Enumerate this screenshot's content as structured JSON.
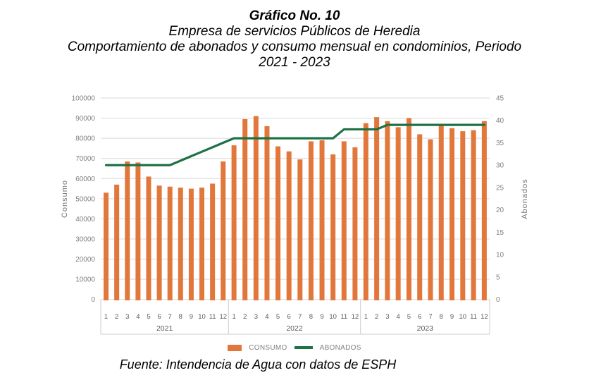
{
  "title": {
    "line1": "Gráfico No. 10",
    "line2": "Empresa de servicios Públicos de Heredia",
    "line3": "Comportamiento de abonados y consumo mensual en condominios, Periodo",
    "line4": "2021 - 2023"
  },
  "source": "Fuente: Intendencia de Agua con datos de ESPH",
  "legend": {
    "consumo": "CONSUMO",
    "abonados": "ABONADOS"
  },
  "colors": {
    "consumo": "#e2773b",
    "abonados": "#1e7145",
    "grid": "#d9d9d9",
    "separator": "#cccccc",
    "axis_text": "#7f7f7f",
    "month_text": "#595959"
  },
  "chart_data": {
    "type": "bar+line",
    "years": [
      "2021",
      "2022",
      "2023"
    ],
    "month_labels": [
      "1",
      "2",
      "3",
      "4",
      "5",
      "6",
      "7",
      "8",
      "9",
      "10",
      "11",
      "12"
    ],
    "left_axis": {
      "label": "Consumo",
      "min": 0,
      "max": 100000,
      "step": 10000
    },
    "right_axis": {
      "label": "Abonados",
      "min": 0,
      "max": 45,
      "step": 5
    },
    "grid": true,
    "legend_position": "bottom",
    "series": [
      {
        "name": "CONSUMO",
        "type": "bar",
        "axis": "left",
        "values": [
          53000,
          57000,
          68500,
          68000,
          61000,
          56500,
          56000,
          55500,
          55000,
          55500,
          57500,
          68500,
          76500,
          89500,
          91000,
          86000,
          76000,
          73500,
          69500,
          78500,
          79000,
          72000,
          78500,
          75500,
          87500,
          90500,
          88500,
          85500,
          90000,
          82000,
          79500,
          86500,
          85000,
          83500,
          84000,
          88500
        ]
      },
      {
        "name": "ABONADOS",
        "type": "line",
        "axis": "right",
        "values": [
          30,
          30,
          30,
          30,
          30,
          30,
          30,
          31,
          32,
          33,
          34,
          35,
          36,
          36,
          36,
          36,
          36,
          36,
          36,
          36,
          36,
          36,
          38,
          38,
          38,
          38,
          39,
          39,
          39,
          39,
          39,
          39,
          39,
          39,
          39,
          39
        ]
      }
    ]
  }
}
